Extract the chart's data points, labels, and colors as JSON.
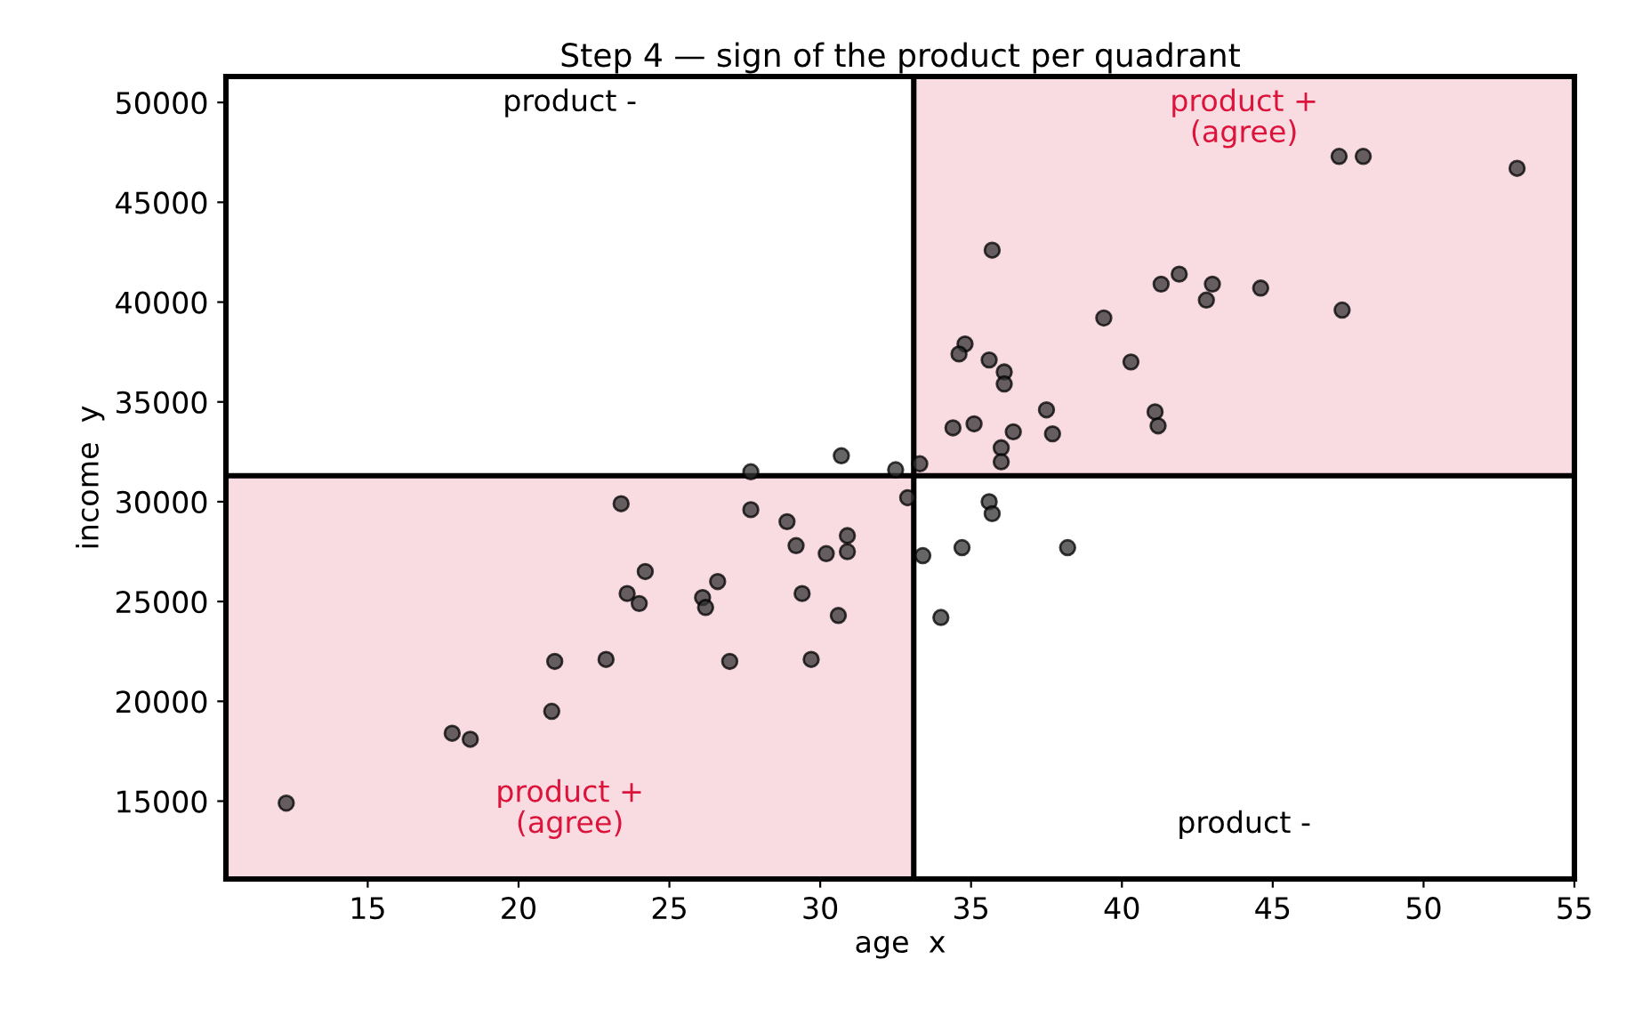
{
  "chart_data": {
    "type": "scatter",
    "title": "Step 4 — sign of the product per quadrant",
    "xlabel": "age  x",
    "ylabel": "income  y",
    "x": [
      12.3,
      17.8,
      18.4,
      21.1,
      21.2,
      22.9,
      23.4,
      23.6,
      24.0,
      24.2,
      26.1,
      26.2,
      26.6,
      27.0,
      27.7,
      27.7,
      28.9,
      29.2,
      29.4,
      29.7,
      30.2,
      30.6,
      30.9,
      30.9,
      32.9,
      30.7,
      32.5,
      33.3,
      47.2,
      48.0,
      53.1,
      35.7,
      41.9,
      41.3,
      43.0,
      42.8,
      44.6,
      47.3,
      39.4,
      34.8,
      34.6,
      35.6,
      36.1,
      36.1,
      40.3,
      37.5,
      41.1,
      41.2,
      34.4,
      35.1,
      36.4,
      37.7,
      36.0,
      36.0,
      35.6,
      35.7,
      33.4,
      34.7,
      38.2,
      34.0
    ],
    "series": [
      {
        "color": "#333333",
        "values": [
          14900,
          18400,
          18100,
          19500,
          22000,
          22100,
          29900,
          25400,
          24900,
          26500,
          25200,
          24700,
          26000,
          22000,
          31500,
          29600,
          29000,
          27800,
          25400,
          22100,
          27400,
          24300,
          28300,
          27500,
          30200,
          32300,
          31600,
          31900,
          47300,
          47300,
          46700,
          42600,
          41400,
          40900,
          40900,
          40100,
          40700,
          39600,
          39200,
          37900,
          37400,
          37100,
          36500,
          35900,
          37000,
          34600,
          34500,
          33800,
          33700,
          33900,
          33500,
          33400,
          32700,
          32000,
          30000,
          29400,
          27300,
          27700,
          27700,
          24200
        ]
      }
    ],
    "marker": "circle",
    "grid": false,
    "legend": false,
    "xlim": [
      10.3,
      55
    ],
    "ylim": [
      11100,
      51300
    ],
    "xticks": [
      15,
      20,
      25,
      30,
      35,
      40,
      45,
      50,
      55
    ],
    "yticks": [
      15000,
      20000,
      25000,
      30000,
      35000,
      40000,
      45000,
      50000
    ],
    "ref_lines": [
      {
        "axis": "x",
        "value": 33.1,
        "color": "#000000"
      },
      {
        "axis": "y",
        "value": 31300,
        "color": "#000000"
      }
    ],
    "bands": [
      {
        "axis": "x",
        "from": 10.3,
        "to": 33.1,
        "color": "#f9dce1"
      },
      {
        "axis": "x",
        "from": 33.1,
        "to": 55,
        "color": "#f9dce1"
      }
    ],
    "annotations": [
      "product -",
      "product +\n(agree)",
      "product +\n(agree)",
      "product -"
    ]
  }
}
